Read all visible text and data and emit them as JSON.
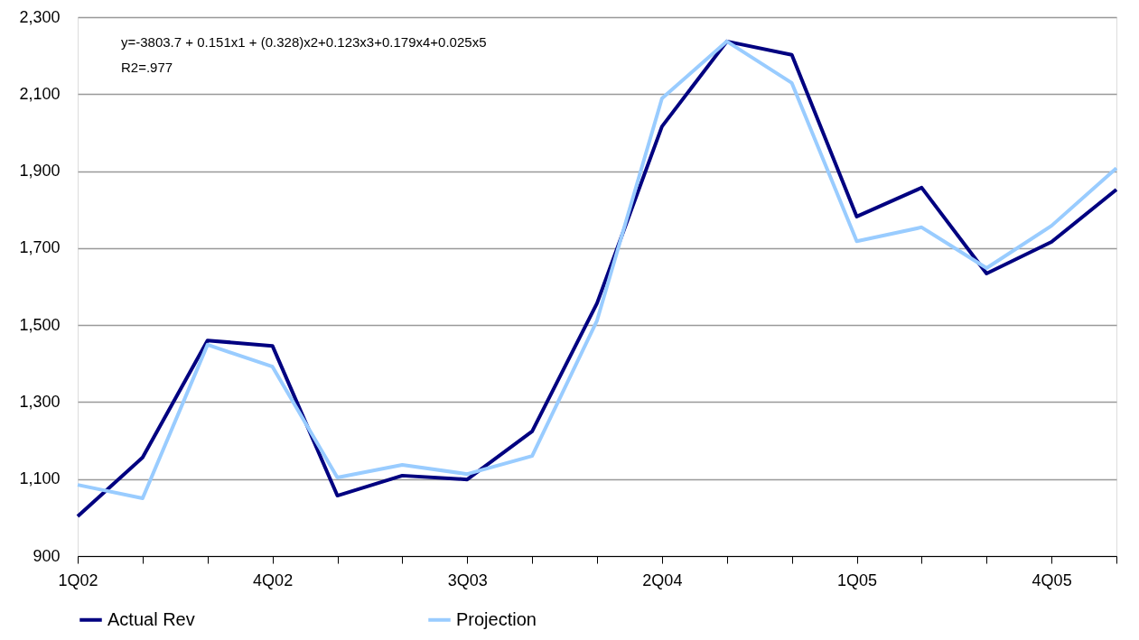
{
  "chart_data": {
    "type": "line",
    "categories": [
      "1Q02",
      null,
      null,
      "4Q02",
      null,
      null,
      "3Q03",
      null,
      null,
      "2Q04",
      null,
      null,
      "1Q05",
      null,
      null,
      "4Q05",
      null
    ],
    "series": [
      {
        "name": "Actual Rev",
        "color": "#000080",
        "values": [
          1003,
          1156,
          1460,
          1446,
          1057,
          1109,
          1099,
          1224,
          1557,
          2016,
          2237,
          2202,
          1782,
          1857,
          1634,
          1716,
          1852
        ]
      },
      {
        "name": "Projection",
        "color": "#99ccff",
        "values": [
          1085,
          1050,
          1449,
          1392,
          1104,
          1137,
          1113,
          1160,
          1512,
          2089,
          2237,
          2129,
          1718,
          1754,
          1648,
          1758,
          1908
        ]
      }
    ],
    "ylim": [
      900,
      2300
    ],
    "yticks": [
      {
        "value": 900,
        "label": "900"
      },
      {
        "value": 1100,
        "label": "1,100"
      },
      {
        "value": 1300,
        "label": "1,300"
      },
      {
        "value": 1500,
        "label": "1,500"
      },
      {
        "value": 1700,
        "label": "1,700"
      },
      {
        "value": 1900,
        "label": "1,900"
      },
      {
        "value": 2100,
        "label": "2,100"
      },
      {
        "value": 2300,
        "label": "2,300"
      }
    ],
    "grid": "y",
    "legend": "bottom",
    "marker": "none",
    "line_style": "solid",
    "annotations": [
      "y=-3803.7 + 0.151x1 + (0.328)x2+0.123x3+0.179x4+0.025x5",
      "R2=.977"
    ]
  }
}
